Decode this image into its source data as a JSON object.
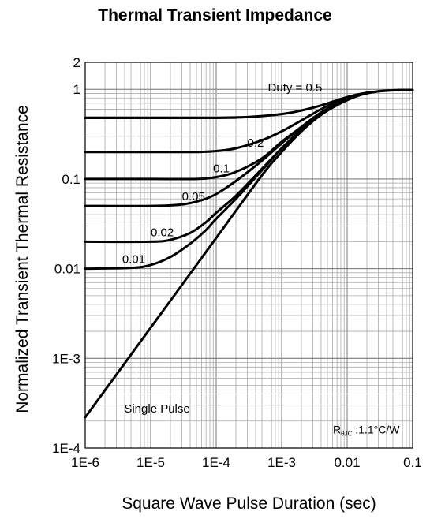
{
  "chart_data": {
    "type": "line",
    "title": "Thermal Transient Impedance",
    "xlabel": "Square Wave Pulse Duration (sec)",
    "ylabel": "Normalized Transient Thermal Resistance",
    "x_scale": "log",
    "y_scale": "log",
    "xlim": [
      1e-06,
      0.1
    ],
    "ylim": [
      0.0001,
      2
    ],
    "x_tick_values": [
      1e-06,
      1e-05,
      0.0001,
      0.001,
      0.01,
      0.1
    ],
    "x_tick_labels": [
      "1E-6",
      "1E-5",
      "1E-4",
      "1E-3",
      "0.01",
      "0.1"
    ],
    "y_tick_values": [
      0.0001,
      0.001,
      0.01,
      0.1,
      1,
      2
    ],
    "y_tick_labels": [
      "1E-4",
      "1E-3",
      "0.01",
      "0.1",
      "1",
      "2"
    ],
    "grid": true,
    "series": [
      {
        "name": "Duty = 0.5",
        "label_at": [
          0.0016,
          0.95
        ],
        "x": [
          1e-06,
          1e-05,
          0.0001,
          0.0003,
          0.001,
          0.002,
          0.004,
          0.008,
          0.015,
          0.03,
          0.06,
          0.1
        ],
        "y": [
          0.48,
          0.48,
          0.48,
          0.49,
          0.53,
          0.58,
          0.66,
          0.78,
          0.88,
          0.95,
          0.98,
          0.98
        ]
      },
      {
        "name": "0.2",
        "label_at": [
          0.0004,
          0.23
        ],
        "x": [
          1e-06,
          1e-05,
          5e-05,
          0.0001,
          0.0002,
          0.0005,
          0.001,
          0.002,
          0.004,
          0.008,
          0.015,
          0.03
        ],
        "y": [
          0.2,
          0.2,
          0.2,
          0.205,
          0.22,
          0.27,
          0.34,
          0.45,
          0.6,
          0.75,
          0.87,
          0.95
        ]
      },
      {
        "name": "0.1",
        "label_at": [
          0.00012,
          0.118
        ],
        "x": [
          1e-06,
          1e-05,
          5e-05,
          0.0001,
          0.0002,
          0.0005,
          0.001,
          0.002,
          0.004,
          0.008,
          0.015
        ],
        "y": [
          0.1,
          0.1,
          0.1,
          0.105,
          0.12,
          0.17,
          0.26,
          0.38,
          0.55,
          0.72,
          0.86
        ]
      },
      {
        "name": "0.05",
        "label_at": [
          4.5e-05,
          0.058
        ],
        "x": [
          1e-06,
          1e-05,
          3e-05,
          6e-05,
          0.0001,
          0.0002,
          0.0005,
          0.001,
          0.002,
          0.004,
          0.008
        ],
        "y": [
          0.05,
          0.05,
          0.052,
          0.058,
          0.068,
          0.095,
          0.16,
          0.25,
          0.38,
          0.55,
          0.72
        ]
      },
      {
        "name": "0.02",
        "label_at": [
          1.5e-05,
          0.023
        ],
        "x": [
          1e-06,
          1e-05,
          2e-05,
          4e-05,
          7e-05,
          0.0001,
          0.0002,
          0.0005,
          0.001,
          0.002,
          0.004
        ],
        "y": [
          0.02,
          0.02,
          0.021,
          0.025,
          0.033,
          0.042,
          0.065,
          0.13,
          0.22,
          0.36,
          0.54
        ]
      },
      {
        "name": "0.01",
        "label_at": [
          5.5e-06,
          0.0115
        ],
        "x": [
          1e-06,
          5e-06,
          1e-05,
          2e-05,
          4e-05,
          7e-05,
          0.0001,
          0.0002,
          0.0005,
          0.001,
          0.002
        ],
        "y": [
          0.01,
          0.0102,
          0.011,
          0.0135,
          0.019,
          0.027,
          0.036,
          0.06,
          0.125,
          0.22,
          0.35
        ]
      },
      {
        "name": "Single Pulse",
        "label_at": [
          1.25e-05,
          0.00025
        ],
        "x": [
          1e-06,
          1e-05,
          0.0001,
          0.0005,
          0.001,
          0.002,
          0.004,
          0.008,
          0.015,
          0.03,
          0.06,
          0.1
        ],
        "y": [
          0.00022,
          0.0022,
          0.022,
          0.11,
          0.2,
          0.34,
          0.52,
          0.7,
          0.85,
          0.95,
          0.98,
          0.98
        ]
      }
    ],
    "annotations": [
      {
        "text_main": "R",
        "text_sub": "θJC",
        "text_rest": " :1.1°C/W",
        "x": 0.01,
        "y": 0.000145
      }
    ]
  }
}
